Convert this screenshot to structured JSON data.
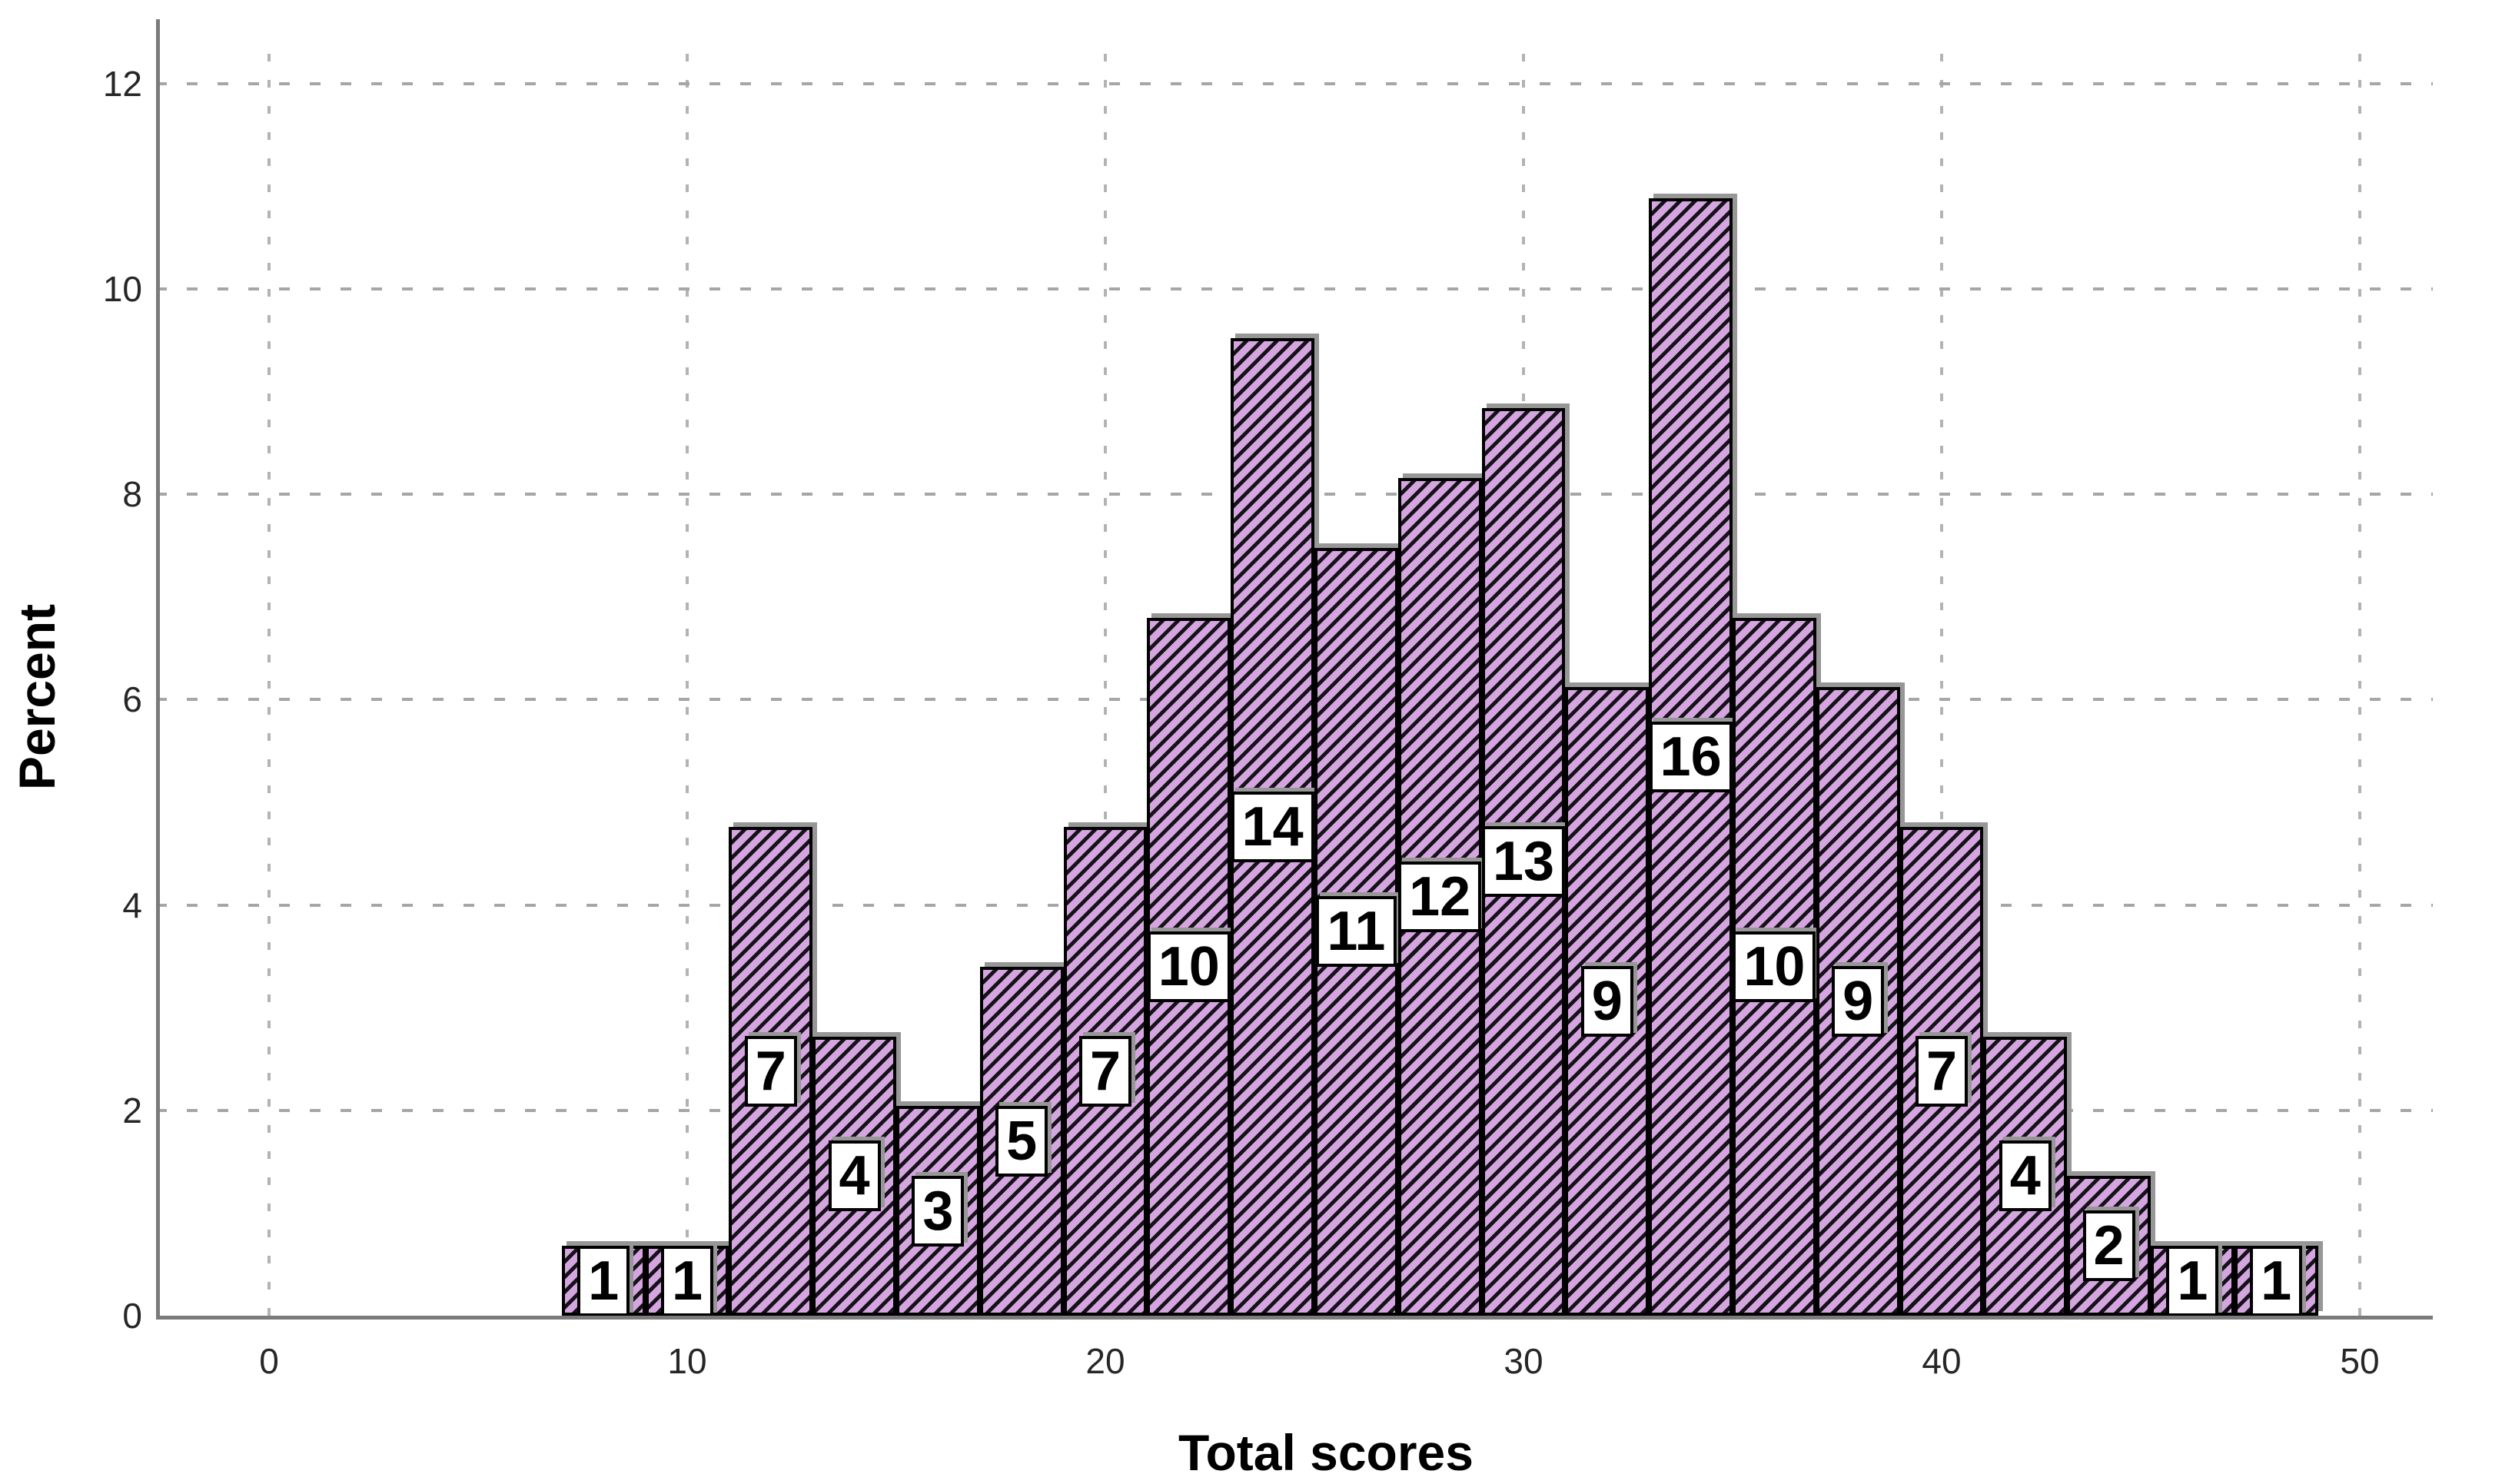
{
  "chart": {
    "y_axis_title": "Percent",
    "x_axis_title": "Total scores",
    "y_tick_labels": [
      "0",
      "2",
      "4",
      "6",
      "8",
      "10",
      "12"
    ],
    "x_tick_labels": [
      "0",
      "10",
      "20",
      "30",
      "40",
      "50"
    ]
  },
  "chart_data": {
    "type": "bar",
    "subtype": "histogram",
    "title": "",
    "xlabel": "Total scores",
    "ylabel": "Percent",
    "x_ticks": [
      0,
      10,
      20,
      30,
      40,
      50
    ],
    "y_ticks": [
      0,
      2,
      4,
      6,
      8,
      10,
      12
    ],
    "xlim": [
      -2.7,
      51.5
    ],
    "ylim": [
      0,
      12.6
    ],
    "grid": "dashed gray, horizontal and vertical, drawn behind bars",
    "legend": "none",
    "bin_width": 2,
    "bins": [
      {
        "x0": 7,
        "x1": 9,
        "count": 1,
        "percent": 0.68
      },
      {
        "x0": 9,
        "x1": 11,
        "count": 1,
        "percent": 0.68
      },
      {
        "x0": 11,
        "x1": 13,
        "count": 7,
        "percent": 4.76
      },
      {
        "x0": 13,
        "x1": 15,
        "count": 4,
        "percent": 2.72
      },
      {
        "x0": 15,
        "x1": 17,
        "count": 3,
        "percent": 2.04
      },
      {
        "x0": 17,
        "x1": 19,
        "count": 5,
        "percent": 3.4
      },
      {
        "x0": 19,
        "x1": 21,
        "count": 7,
        "percent": 4.76
      },
      {
        "x0": 21,
        "x1": 23,
        "count": 10,
        "percent": 6.8
      },
      {
        "x0": 23,
        "x1": 25,
        "count": 14,
        "percent": 9.52
      },
      {
        "x0": 25,
        "x1": 27,
        "count": 11,
        "percent": 7.48
      },
      {
        "x0": 27,
        "x1": 29,
        "count": 12,
        "percent": 8.16
      },
      {
        "x0": 29,
        "x1": 31,
        "count": 13,
        "percent": 8.84
      },
      {
        "x0": 31,
        "x1": 33,
        "count": 9,
        "percent": 6.12
      },
      {
        "x0": 33,
        "x1": 35,
        "count": 16,
        "percent": 10.88
      },
      {
        "x0": 35,
        "x1": 37,
        "count": 10,
        "percent": 6.8
      },
      {
        "x0": 37,
        "x1": 39,
        "count": 9,
        "percent": 6.12
      },
      {
        "x0": 39,
        "x1": 41,
        "count": 7,
        "percent": 4.76
      },
      {
        "x0": 41,
        "x1": 43,
        "count": 4,
        "percent": 2.72
      },
      {
        "x0": 43,
        "x1": 45,
        "count": 2,
        "percent": 1.36
      },
      {
        "x0": 45,
        "x1": 47,
        "count": 1,
        "percent": 0.68
      },
      {
        "x0": 47,
        "x1": 49,
        "count": 1,
        "percent": 0.68
      }
    ],
    "styles": {
      "bar_fill": "#d5a5df",
      "bar_hatch": "forward-diagonal-black",
      "bar_hatch_color": "#16121a",
      "bar_border": "#000000",
      "label_box_bg": "#ffffff",
      "label_box_border": "#000000",
      "axis_color": "#7b7b7b",
      "grid_color": "#adadad",
      "shadow_color": "#979797",
      "background": "#ffffff"
    }
  }
}
